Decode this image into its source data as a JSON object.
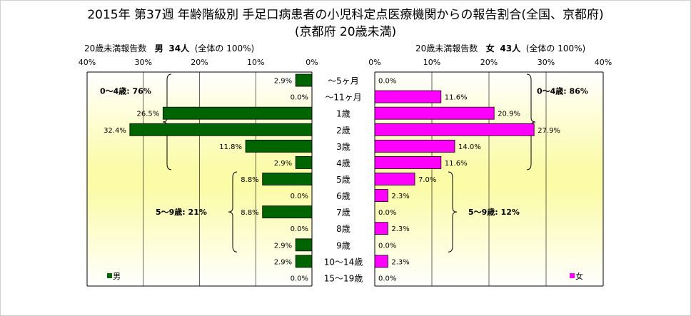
{
  "title": "2015年 第37週 年齢階級別 手足口病患者の小児科定点医療機関からの報告割合(全国、京都府)",
  "subtitle": "(京都府 20歳未満)",
  "chart_data": [
    {
      "type": "bar",
      "orientation": "horizontal",
      "direction": "right-to-left",
      "header": {
        "prefix": "20歳未満報告数",
        "sex": "男",
        "count": "34人",
        "suffix": "(全体の 100%)"
      },
      "series": [
        {
          "name": "男",
          "color": "#006400",
          "values": [
            2.9,
            0.0,
            26.5,
            32.4,
            11.8,
            2.9,
            8.8,
            0.0,
            8.8,
            0.0,
            2.9,
            2.9,
            0.0
          ]
        }
      ],
      "data_labels": [
        "2.9%",
        "0.0%",
        "26.5%",
        "32.4%",
        "11.8%",
        "2.9%",
        "8.8%",
        "0.0%",
        "8.8%",
        "0.0%",
        "2.9%",
        "2.9%",
        "0.0%"
      ],
      "xlim": [
        0,
        40
      ],
      "xticks": [
        "40%",
        "30%",
        "20%",
        "10%",
        "0%"
      ],
      "legend": {
        "label": "男",
        "position": "bottom-left"
      },
      "annotations": [
        {
          "text": "0～4歳: 76%",
          "from_category": 0,
          "to_category": 5
        },
        {
          "text": "5～9歳: 21%",
          "from_category": 6,
          "to_category": 10
        }
      ]
    },
    {
      "type": "bar",
      "orientation": "horizontal",
      "direction": "left-to-right",
      "header": {
        "prefix": "20歳未満報告数",
        "sex": "女",
        "count": "43人",
        "suffix": "(全体の 100%)"
      },
      "series": [
        {
          "name": "女",
          "color": "#ff00ff",
          "values": [
            0.0,
            11.6,
            20.9,
            27.9,
            14.0,
            11.6,
            7.0,
            2.3,
            0.0,
            2.3,
            0.0,
            2.3,
            0.0
          ]
        }
      ],
      "data_labels": [
        "0.0%",
        "11.6%",
        "20.9%",
        "27.9%",
        "14.0%",
        "11.6%",
        "7.0%",
        "2.3%",
        "0.0%",
        "2.3%",
        "0.0%",
        "2.3%",
        "0.0%"
      ],
      "xlim": [
        0,
        40
      ],
      "xticks": [
        "0%",
        "10%",
        "20%",
        "30%",
        "40%"
      ],
      "legend": {
        "label": "女",
        "position": "bottom-right"
      },
      "annotations": [
        {
          "text": "0～4歳: 86%",
          "from_category": 0,
          "to_category": 5
        },
        {
          "text": "5～9歳: 12%",
          "from_category": 6,
          "to_category": 10
        }
      ]
    }
  ],
  "categories": [
    "～5ヶ月",
    "～11ヶ月",
    "1歳",
    "2歳",
    "3歳",
    "4歳",
    "5歳",
    "6歳",
    "7歳",
    "8歳",
    "9歳",
    "10～14歳",
    "15～19歳"
  ]
}
